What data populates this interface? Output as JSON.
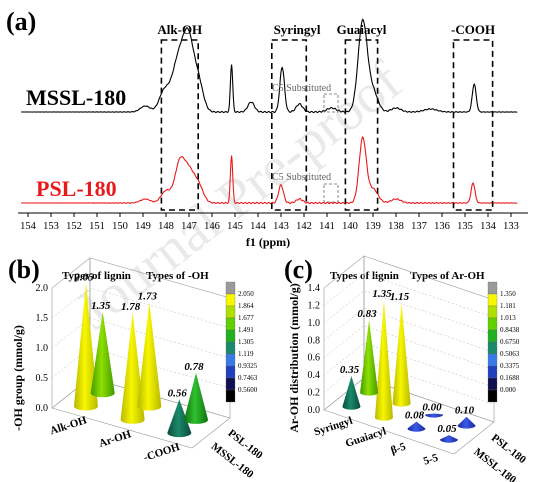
{
  "watermark": "Journal Pre-proof",
  "panel_a": {
    "label": "(a)",
    "xlabel": "f1 (ppm)",
    "xticks": [
      154,
      153,
      152,
      151,
      150,
      149,
      148,
      147,
      146,
      145,
      144,
      143,
      142,
      141,
      140,
      139,
      138,
      137,
      136,
      135,
      134,
      133
    ],
    "spectra": [
      {
        "name": "MSSL-180",
        "color": "#000000"
      },
      {
        "name": "PSL-180",
        "color": "#e8191c"
      }
    ],
    "regions": [
      {
        "label": "Alk-OH",
        "from": 148.2,
        "to": 146.6
      },
      {
        "label": "Syringyl",
        "from": 143.4,
        "to": 141.9
      },
      {
        "label": "Guaiacyl",
        "from": 140.2,
        "to": 138.8
      },
      {
        "label": "-COOH",
        "from": 135.5,
        "to": 133.8
      }
    ],
    "substituted_label": "C5 Substituted"
  },
  "panel_b": {
    "label": "(b)",
    "axis_title": "-OH group (mmol/g)",
    "legend_rows": "Types of lignin",
    "legend_cols": "Types of -OH",
    "zticks": [
      "0.0",
      "0.5",
      "1.0",
      "1.5",
      "2.0"
    ],
    "categories": [
      "Alk-OH",
      "Ar-OH",
      "-COOH"
    ],
    "samples": [
      "PSL-180",
      "MSSL-180"
    ],
    "values": [
      {
        "category": "Alk-OH",
        "sample": "MSSL-180",
        "value": 2.05,
        "label": "2.05"
      },
      {
        "category": "Ar-OH",
        "sample": "MSSL-180",
        "value": 1.78,
        "label": "1.78"
      },
      {
        "category": "Ar-OH",
        "sample": "PSL-180",
        "value": 1.73,
        "label": "1.73"
      },
      {
        "category": "Alk-OH",
        "sample": "PSL-180",
        "value": 1.35,
        "label": "1.35"
      },
      {
        "category": "-COOH",
        "sample": "PSL-180",
        "value": 0.78,
        "label": "0.78"
      },
      {
        "category": "-COOH",
        "sample": "MSSL-180",
        "value": 0.56,
        "label": "0.56"
      }
    ],
    "colorbar": [
      "2.050",
      "1.864",
      "1.677",
      "1.491",
      "1.305",
      "1.119",
      "0.9325",
      "0.7463",
      "0.5600"
    ]
  },
  "panel_c": {
    "label": "(c)",
    "axis_title": "Ar-OH distribution (mmol/g)",
    "legend_rows": "Types of lignin",
    "legend_cols": "Types of Ar-OH",
    "zticks": [
      "0.0",
      "0.2",
      "0.4",
      "0.6",
      "0.8",
      "1.0",
      "1.2",
      "1.4"
    ],
    "categories": [
      "Syringyl",
      "Guaiacyl",
      "β-5",
      "5-5"
    ],
    "samples": [
      "PSL-180",
      "MSSL-180"
    ],
    "values": [
      {
        "category": "Syringyl",
        "sample": "PSL-180",
        "value": 0.83,
        "label": "0.83"
      },
      {
        "category": "Guaiacyl",
        "sample": "PSL-180",
        "value": 1.15,
        "label": "1.15"
      },
      {
        "category": "Guaiacyl",
        "sample": "MSSL-180",
        "value": 1.35,
        "label": "1.35"
      },
      {
        "category": "β-5",
        "sample": "PSL-180",
        "value": 0.0,
        "label": "0.00"
      },
      {
        "category": "β-5",
        "sample": "MSSL-180",
        "value": 0.08,
        "label": "0.08"
      },
      {
        "category": "5-5",
        "sample": "PSL-180",
        "value": 0.1,
        "label": "0.10"
      },
      {
        "category": "5-5",
        "sample": "MSSL-180",
        "value": 0.05,
        "label": "0.05"
      },
      {
        "category": "Syringyl",
        "sample": "MSSL-180",
        "value": 0.35,
        "label": "0.35"
      }
    ],
    "colorbar": [
      "1.350",
      "1.181",
      "1.013",
      "0.8438",
      "0.6750",
      "0.5063",
      "0.3375",
      "0.1688",
      "0.000"
    ]
  }
}
